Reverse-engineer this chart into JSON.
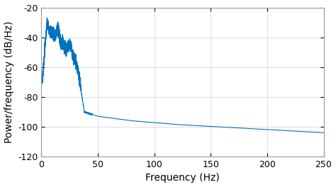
{
  "title": "",
  "xlabel": "Frequency (Hz)",
  "ylabel": "Power/frequency (dB/Hz)",
  "xlim": [
    0,
    250
  ],
  "ylim": [
    -120,
    -20
  ],
  "yticks": [
    -20,
    -40,
    -60,
    -80,
    -100,
    -120
  ],
  "xticks": [
    0,
    50,
    100,
    150,
    200,
    250
  ],
  "line_color": "#0072BD",
  "line_width": 0.8,
  "grid_color": "#d0d0d0",
  "background_color": "#ffffff",
  "font_size_label": 10,
  "font_size_tick": 9,
  "spine_color": "#999999"
}
